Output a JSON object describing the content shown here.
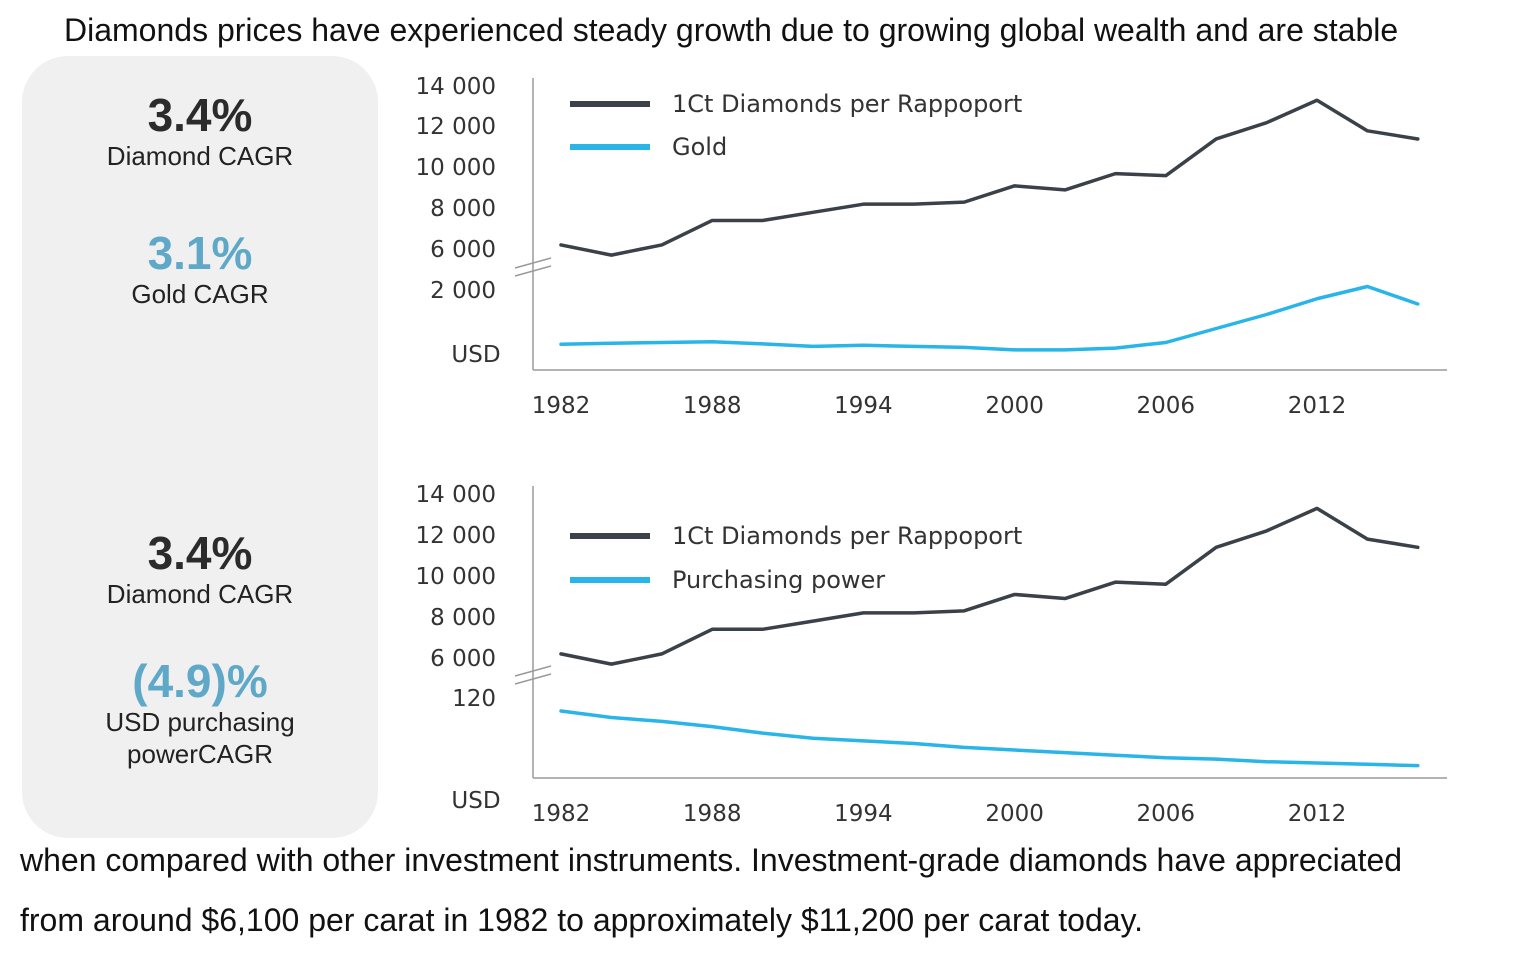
{
  "headline": "Diamonds prices have experienced steady growth due to growing global wealth and are stable",
  "footer": {
    "line1": "when compared with other investment instruments. Investment-grade diamonds have appreciated",
    "line2": "from around $6,100 per carat in 1982 to approximately $11,200 per carat today."
  },
  "stats": [
    {
      "value": "3.4%",
      "label": "Diamond CAGR",
      "color": "#2b2b2b"
    },
    {
      "value": "3.1%",
      "label": "Gold CAGR",
      "color": "#5fa8c8"
    },
    {
      "value": "3.4%",
      "label": "Diamond CAGR",
      "color": "#2b2b2b"
    },
    {
      "value": "(4.9)%",
      "label_line1": "USD purchasing",
      "label_line2": "powerCAGR",
      "color": "#5fa8c8"
    }
  ],
  "chart_data": [
    {
      "type": "line",
      "y_unit_label": "USD",
      "x_ticks": [
        "1982",
        "1988",
        "1994",
        "2000",
        "2006",
        "2012"
      ],
      "y_ticks": [
        "14 000",
        "12 000",
        "10 000",
        "8 000",
        "6 000",
        "2 000"
      ],
      "axis_break": true,
      "legend_position": "top-left",
      "series": [
        {
          "name": "1Ct Diamonds per Rappoport",
          "color": "#3a4148",
          "x": [
            1982,
            1984,
            1986,
            1988,
            1990,
            1992,
            1994,
            1996,
            1998,
            2000,
            2002,
            2004,
            2006,
            2008,
            2010,
            2012,
            2014,
            2016
          ],
          "y": [
            6200,
            5700,
            6200,
            7400,
            7400,
            7800,
            8200,
            8200,
            8300,
            9100,
            8900,
            9700,
            9600,
            11400,
            12200,
            13300,
            11800,
            11400
          ]
        },
        {
          "name": "Gold",
          "color": "#29b5e8",
          "x": [
            1982,
            1984,
            1986,
            1988,
            1990,
            1992,
            1994,
            1996,
            1998,
            2000,
            2002,
            2004,
            2006,
            2008,
            2010,
            2012,
            2014,
            2016
          ],
          "y": [
            450,
            480,
            500,
            520,
            460,
            390,
            420,
            390,
            360,
            290,
            290,
            340,
            500,
            900,
            1300,
            1750,
            2100,
            1600
          ]
        }
      ]
    },
    {
      "type": "line",
      "y_unit_label": "USD",
      "x_ticks": [
        "1982",
        "1988",
        "1994",
        "2000",
        "2006",
        "2012"
      ],
      "y_ticks": [
        "14 000",
        "12 000",
        "10 000",
        "8 000",
        "6 000",
        "120"
      ],
      "axis_break": true,
      "legend_position": "top-left",
      "series": [
        {
          "name": "1Ct Diamonds per Rappoport",
          "color": "#3a4148",
          "x": [
            1982,
            1984,
            1986,
            1988,
            1990,
            1992,
            1994,
            1996,
            1998,
            2000,
            2002,
            2004,
            2006,
            2008,
            2010,
            2012,
            2014,
            2016
          ],
          "y": [
            6200,
            5700,
            6200,
            7400,
            7400,
            7800,
            8200,
            8200,
            8300,
            9100,
            8900,
            9700,
            9600,
            11400,
            12200,
            13300,
            11800,
            11400
          ]
        },
        {
          "name": "Purchasing power",
          "color": "#29b5e8",
          "x": [
            1982,
            1984,
            1986,
            1988,
            1990,
            1992,
            1994,
            1996,
            1998,
            2000,
            2002,
            2004,
            2006,
            2008,
            2010,
            2012,
            2014,
            2016
          ],
          "y": [
            110,
            105,
            102,
            98,
            93,
            89,
            87,
            85,
            82,
            80,
            78,
            76,
            74,
            73,
            71,
            70,
            69,
            68
          ]
        }
      ]
    }
  ]
}
